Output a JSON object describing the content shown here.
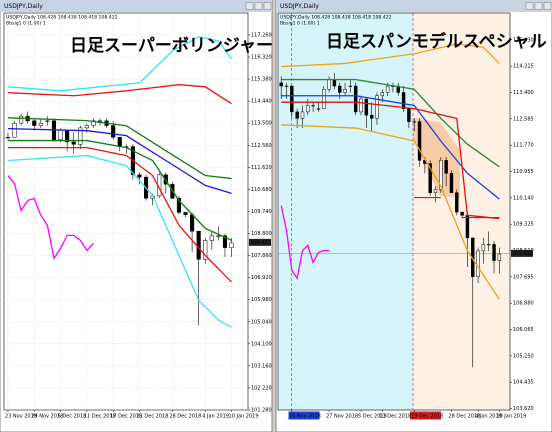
{
  "chart_data": [
    {
      "type": "candlestick",
      "window_title": "USDJPY,Daily",
      "title": "日足スーパーボリンジャー",
      "header": "USDJPY,Daily 108.428 108.438 108.418 108.422",
      "indicator_label": "Bbsig1 0 (1.00) 1",
      "grid": true,
      "price_label": 108.422,
      "ylim": [
        101.28,
        118.195
      ],
      "yticks": [
        {
          "value": 117.26,
          "label": "117.260"
        },
        {
          "value": 116.32,
          "label": "116.320"
        },
        {
          "value": 115.38,
          "label": "115.380"
        },
        {
          "value": 114.44,
          "label": "114.440"
        },
        {
          "value": 113.5,
          "label": "113.500"
        },
        {
          "value": 112.56,
          "label": "112.560"
        },
        {
          "value": 111.62,
          "label": "111.620"
        },
        {
          "value": 110.68,
          "label": "110.680"
        },
        {
          "value": 109.74,
          "label": "109.740"
        },
        {
          "value": 108.8,
          "label": "108.800"
        },
        {
          "value": 107.86,
          "label": "107.860"
        },
        {
          "value": 106.92,
          "label": "106.920"
        },
        {
          "value": 105.98,
          "label": "105.980"
        },
        {
          "value": 105.04,
          "label": "105.040"
        },
        {
          "value": 104.1,
          "label": "104.100"
        },
        {
          "value": 103.16,
          "label": "103.160"
        },
        {
          "value": 102.22,
          "label": "102.220"
        },
        {
          "value": 101.28,
          "label": "101.280"
        }
      ],
      "categories": [
        "23 Nov 2018",
        null,
        null,
        null,
        "29 Nov 2018",
        null,
        null,
        null,
        "5 Dec 2018",
        null,
        null,
        null,
        "11 Dec 2018",
        null,
        null,
        null,
        "17 Dec 2018",
        null,
        null,
        null,
        "21 Dec 2018",
        null,
        null,
        null,
        null,
        "28 Dec 2018",
        null,
        null,
        null,
        null,
        "4 Jan 2019",
        null,
        null,
        null,
        "10 Jan 2019"
      ],
      "ohlc": [
        [
          112.9,
          113.1,
          112.8,
          112.9
        ],
        [
          112.9,
          113.6,
          112.9,
          113.5
        ],
        [
          113.5,
          113.9,
          113.4,
          113.8
        ],
        [
          113.8,
          114.0,
          113.5,
          113.6
        ],
        [
          113.6,
          113.7,
          113.2,
          113.4
        ],
        [
          113.4,
          113.7,
          113.3,
          113.5
        ],
        [
          113.6,
          113.8,
          113.4,
          113.6
        ],
        [
          113.6,
          113.7,
          112.7,
          112.8
        ],
        [
          112.8,
          113.3,
          112.7,
          113.2
        ],
        [
          113.2,
          113.2,
          112.3,
          112.7
        ],
        [
          112.7,
          113.1,
          112.2,
          112.6
        ],
        [
          112.6,
          113.4,
          112.4,
          113.3
        ],
        [
          113.3,
          113.5,
          113.1,
          113.4
        ],
        [
          113.4,
          113.7,
          113.3,
          113.6
        ],
        [
          113.6,
          113.7,
          113.4,
          113.6
        ],
        [
          113.6,
          113.7,
          113.3,
          113.4
        ],
        [
          113.4,
          113.6,
          112.8,
          112.9
        ],
        [
          112.9,
          112.9,
          112.3,
          112.5
        ],
        [
          112.5,
          112.6,
          112.2,
          112.5
        ],
        [
          112.5,
          112.6,
          111.1,
          111.3
        ],
        [
          111.3,
          111.4,
          110.9,
          111.2
        ],
        [
          111.2,
          111.3,
          110.2,
          110.3
        ],
        [
          110.3,
          110.5,
          110.0,
          110.4
        ],
        [
          110.4,
          111.4,
          110.3,
          111.3
        ],
        [
          111.3,
          111.4,
          110.5,
          110.9
        ],
        [
          110.9,
          111.0,
          110.3,
          110.3
        ],
        [
          110.3,
          110.4,
          109.6,
          109.7
        ],
        [
          109.7,
          109.7,
          109.5,
          109.6
        ],
        [
          109.6,
          109.7,
          108.0,
          108.9
        ],
        [
          108.9,
          108.9,
          104.9,
          107.7
        ],
        [
          107.7,
          108.6,
          107.5,
          108.5
        ],
        [
          108.5,
          108.9,
          108.1,
          108.7
        ],
        [
          108.7,
          109.1,
          108.5,
          108.7
        ],
        [
          108.7,
          108.8,
          107.8,
          108.2
        ],
        [
          108.2,
          108.6,
          107.8,
          108.4
        ]
      ],
      "series": [
        {
          "color": "#33e6ee",
          "x": [
            0,
            8,
            14,
            20,
            25,
            29,
            32,
            34
          ],
          "values": [
            115.05,
            114.88,
            115.05,
            115.22,
            116.58,
            117.18,
            117.01,
            116.24
          ]
        },
        {
          "color": "#e8140c",
          "x": [
            0,
            10,
            18,
            26,
            30,
            34
          ],
          "values": [
            114.8,
            114.67,
            114.88,
            115.14,
            115.05,
            114.33
          ]
        },
        {
          "color": "#137a13",
          "x": [
            0,
            12,
            18,
            24,
            30,
            34
          ],
          "values": [
            113.73,
            113.61,
            113.39,
            112.33,
            111.27,
            111.14
          ]
        },
        {
          "color": "#1a1ad8",
          "x": [
            0,
            12,
            18,
            24,
            30,
            34
          ],
          "values": [
            113.27,
            113.18,
            112.97,
            111.91,
            110.85,
            110.51
          ]
        },
        {
          "color": "#137a13",
          "x": [
            0,
            12,
            18,
            22,
            26,
            30,
            34
          ],
          "values": [
            112.76,
            112.76,
            112.46,
            111.91,
            110.21,
            109.02,
            108.51
          ]
        },
        {
          "color": "#e8140c",
          "x": [
            0,
            12,
            18,
            22,
            26,
            30,
            34
          ],
          "values": [
            112.46,
            112.46,
            112.12,
            111.27,
            109.15,
            107.87,
            106.73
          ]
        },
        {
          "color": "#33e6ee",
          "x": [
            0,
            12,
            18,
            22,
            26,
            29,
            32,
            34
          ],
          "values": [
            111.91,
            112.12,
            111.69,
            110.42,
            107.87,
            105.96,
            105.11,
            104.81
          ]
        },
        {
          "color": "#ff00ff",
          "x": [
            0,
            1,
            2,
            3,
            4,
            5,
            6,
            7,
            8,
            9,
            10,
            11,
            12,
            13
          ],
          "values": [
            111.27,
            110.93,
            109.78,
            110.21,
            110.29,
            109.57,
            109.15,
            107.74,
            108.17,
            108.72,
            108.72,
            108.51,
            108.08,
            108.38
          ]
        }
      ]
    },
    {
      "type": "candlestick",
      "window_title": "USDJPY,Daily",
      "title": "日足スパンモデルスペシャル",
      "header": "USDJPY,Daily 108.428 108.438 108.418 108.422",
      "indicator_label": "Bbsig1 0 (1.00) 1",
      "grid": false,
      "price_label": 108.422,
      "ylim": [
        103.576,
        115.86
      ],
      "yticks": [
        {
          "value": 115.03,
          "label": "115.030"
        },
        {
          "value": 114.215,
          "label": "114.215"
        },
        {
          "value": 113.4,
          "label": "113.400"
        },
        {
          "value": 112.585,
          "label": "112.585"
        },
        {
          "value": 111.77,
          "label": "111.770"
        },
        {
          "value": 110.955,
          "label": "110.955"
        },
        {
          "value": 110.14,
          "label": "110.140"
        },
        {
          "value": 109.325,
          "label": "109.325"
        },
        {
          "value": 108.51,
          "label": "108.510"
        },
        {
          "value": 107.695,
          "label": "107.695"
        },
        {
          "value": 106.88,
          "label": "106.880"
        },
        {
          "value": 106.065,
          "label": "106.065"
        },
        {
          "value": 105.25,
          "label": "105.250"
        },
        {
          "value": 104.435,
          "label": "104.435"
        },
        {
          "value": 103.62,
          "label": "103.620"
        }
      ],
      "categories": [
        null,
        null,
        "16 Nov 2018",
        null,
        null,
        null,
        null,
        null,
        null,
        "27 Nov 2018",
        null,
        null,
        null,
        null,
        null,
        "5 Dec 2018",
        null,
        null,
        null,
        "11 Dec 2018",
        null,
        null,
        null,
        null,
        null,
        "19 Dec 2018",
        null,
        null,
        null,
        null,
        null,
        null,
        "28 Dec 2018",
        null,
        null,
        null,
        null,
        "4 Jan 2019",
        null,
        null,
        null,
        "10 Jan 2019"
      ],
      "ohlc": [
        [
          113.7,
          113.9,
          113.2,
          113.6
        ],
        [
          113.6,
          113.7,
          113.2,
          113.6
        ],
        [
          113.6,
          113.6,
          112.6,
          112.8
        ],
        [
          112.8,
          112.9,
          112.3,
          112.6
        ],
        [
          112.6,
          113.0,
          112.3,
          112.8
        ],
        [
          112.8,
          113.2,
          112.7,
          113.0
        ],
        [
          113.0,
          113.1,
          112.8,
          113.0
        ],
        [
          112.9,
          113.1,
          112.8,
          112.9
        ],
        [
          112.9,
          113.6,
          112.9,
          113.5
        ],
        [
          113.5,
          113.9,
          113.4,
          113.8
        ],
        [
          113.8,
          114.0,
          113.5,
          113.6
        ],
        [
          113.6,
          113.7,
          113.2,
          113.4
        ],
        [
          113.4,
          113.7,
          113.3,
          113.5
        ],
        [
          113.6,
          113.8,
          113.4,
          113.6
        ],
        [
          113.6,
          113.7,
          112.7,
          112.8
        ],
        [
          112.8,
          113.3,
          112.7,
          113.2
        ],
        [
          113.2,
          113.2,
          112.3,
          112.7
        ],
        [
          112.7,
          113.1,
          112.2,
          112.6
        ],
        [
          112.6,
          113.4,
          112.4,
          113.3
        ],
        [
          113.3,
          113.5,
          113.1,
          113.4
        ],
        [
          113.4,
          113.7,
          113.3,
          113.6
        ],
        [
          113.6,
          113.7,
          113.4,
          113.6
        ],
        [
          113.6,
          113.7,
          113.3,
          113.4
        ],
        [
          113.4,
          113.6,
          112.8,
          112.9
        ],
        [
          112.9,
          112.9,
          112.3,
          112.5
        ],
        [
          112.5,
          112.6,
          112.2,
          112.5
        ],
        [
          112.5,
          112.6,
          111.1,
          111.3
        ],
        [
          111.3,
          111.4,
          110.9,
          111.2
        ],
        [
          111.2,
          111.3,
          110.2,
          110.3
        ],
        [
          110.3,
          110.5,
          110.0,
          110.4
        ],
        [
          110.4,
          111.4,
          110.3,
          111.3
        ],
        [
          111.3,
          111.4,
          110.5,
          110.9
        ],
        [
          110.9,
          111.0,
          110.3,
          110.3
        ],
        [
          110.3,
          110.4,
          109.6,
          109.7
        ],
        [
          109.7,
          109.7,
          109.5,
          109.6
        ],
        [
          109.6,
          109.7,
          108.0,
          108.9
        ],
        [
          108.9,
          108.9,
          104.9,
          107.7
        ],
        [
          107.7,
          108.6,
          107.5,
          108.5
        ],
        [
          108.5,
          108.9,
          108.1,
          108.7
        ],
        [
          108.7,
          109.1,
          108.5,
          108.7
        ],
        [
          108.7,
          108.8,
          107.8,
          108.2
        ],
        [
          108.2,
          108.6,
          107.8,
          108.4
        ]
      ],
      "series": [
        {
          "color": "#e8a317",
          "x": [
            0,
            12,
            25,
            33,
            38,
            41
          ],
          "values": [
            114.2,
            114.3,
            114.6,
            114.9,
            114.8,
            114.3
          ]
        },
        {
          "color": "#2e8b2e",
          "x": [
            0,
            14,
            25,
            30,
            35,
            41
          ],
          "values": [
            113.8,
            113.8,
            113.5,
            112.6,
            111.8,
            111.1
          ]
        },
        {
          "color": "#1f3fd6",
          "x": [
            0,
            14,
            25,
            30,
            35,
            41
          ],
          "values": [
            113.3,
            113.3,
            113.0,
            111.9,
            110.9,
            110.1
          ]
        },
        {
          "color": "#e01010",
          "x": [
            0,
            14,
            25,
            33,
            35,
            41
          ],
          "values": [
            113.1,
            113.1,
            112.9,
            112.6,
            109.6,
            109.5
          ]
        },
        {
          "color": "#e8a317",
          "x": [
            0,
            14,
            25,
            30,
            35,
            41
          ],
          "values": [
            112.4,
            112.3,
            111.9,
            110.5,
            108.5,
            107.0
          ]
        },
        {
          "color": "#ff00ff",
          "x": [
            0,
            1,
            2,
            3,
            4,
            5,
            6,
            7,
            8,
            9
          ],
          "values": [
            109.9,
            109.13,
            107.9,
            107.65,
            108.51,
            108.67,
            108.14,
            108.45,
            108.51,
            108.51
          ]
        }
      ],
      "hlines": [
        {
          "color": "#e01010",
          "value": 110.15,
          "x": [
            25,
            30
          ]
        },
        {
          "color": "#e01010",
          "value": 109.53,
          "x": [
            34,
            41
          ]
        }
      ]
    }
  ]
}
